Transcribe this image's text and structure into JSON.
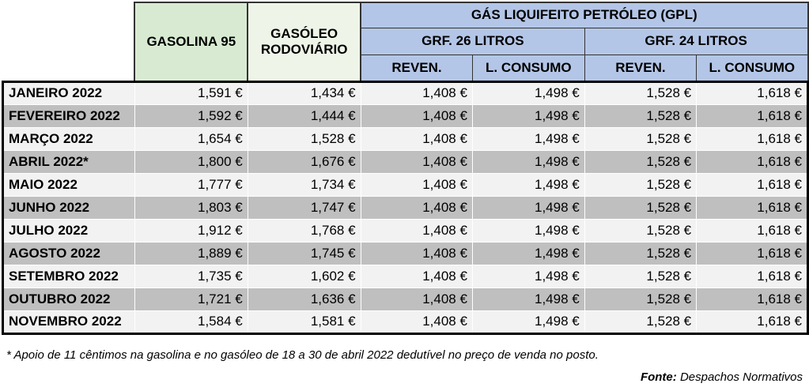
{
  "headers": {
    "gasolina": "GASOLINA 95",
    "gasoleo_line1": "GASÓLEO",
    "gasoleo_line2": "RODOVIÁRIO",
    "gpl": "GÁS LIQUIFEITO PETRÓLEO (GPL)",
    "grf26": "GRF. 26 LITROS",
    "grf24": "GRF. 24 LITROS",
    "reven_26": "REVEN.",
    "consumo_26": "L. CONSUMO",
    "reven_24": "REVEN.",
    "consumo_24": "L. CONSUMO"
  },
  "rows": [
    {
      "month": "JANEIRO 2022",
      "gasolina": "1,591 €",
      "gasoleo": "1,434 €",
      "g26_reven": "1,408 €",
      "g26_consumo": "1,498 €",
      "g24_reven": "1,528 €",
      "g24_consumo": "1,618 €"
    },
    {
      "month": "FEVEREIRO 2022",
      "gasolina": "1,592 €",
      "gasoleo": "1,444 €",
      "g26_reven": "1,408 €",
      "g26_consumo": "1,498 €",
      "g24_reven": "1,528 €",
      "g24_consumo": "1,618 €"
    },
    {
      "month": "MARÇO 2022",
      "gasolina": "1,654 €",
      "gasoleo": "1,528 €",
      "g26_reven": "1,408 €",
      "g26_consumo": "1,498 €",
      "g24_reven": "1,528 €",
      "g24_consumo": "1,618 €"
    },
    {
      "month": "ABRIL 2022*",
      "gasolina": "1,800 €",
      "gasoleo": "1,676 €",
      "g26_reven": "1,408 €",
      "g26_consumo": "1,498 €",
      "g24_reven": "1,528 €",
      "g24_consumo": "1,618 €"
    },
    {
      "month": "MAIO 2022",
      "gasolina": "1,777 €",
      "gasoleo": "1,734 €",
      "g26_reven": "1,408 €",
      "g26_consumo": "1,498 €",
      "g24_reven": "1,528 €",
      "g24_consumo": "1,618 €"
    },
    {
      "month": "JUNHO 2022",
      "gasolina": "1,803 €",
      "gasoleo": "1,747 €",
      "g26_reven": "1,408 €",
      "g26_consumo": "1,498 €",
      "g24_reven": "1,528 €",
      "g24_consumo": "1,618 €"
    },
    {
      "month": "JULHO 2022",
      "gasolina": "1,912 €",
      "gasoleo": "1,768 €",
      "g26_reven": "1,408 €",
      "g26_consumo": "1,498 €",
      "g24_reven": "1,528 €",
      "g24_consumo": "1,618 €"
    },
    {
      "month": "AGOSTO 2022",
      "gasolina": "1,889 €",
      "gasoleo": "1,745 €",
      "g26_reven": "1,408 €",
      "g26_consumo": "1,498 €",
      "g24_reven": "1,528 €",
      "g24_consumo": "1,618 €"
    },
    {
      "month": "SETEMBRO 2022",
      "gasolina": "1,735 €",
      "gasoleo": "1,602 €",
      "g26_reven": "1,408 €",
      "g26_consumo": "1,498 €",
      "g24_reven": "1,528 €",
      "g24_consumo": "1,618 €"
    },
    {
      "month": "OUTUBRO 2022",
      "gasolina": "1,721 €",
      "gasoleo": "1,636 €",
      "g26_reven": "1,408 €",
      "g26_consumo": "1,498 €",
      "g24_reven": "1,528 €",
      "g24_consumo": "1,618 €"
    },
    {
      "month": "NOVEMBRO 2022",
      "gasolina": "1,584 €",
      "gasoleo": "1,581 €",
      "g26_reven": "1,408 €",
      "g26_consumo": "1,498 €",
      "g24_reven": "1,528 €",
      "g24_consumo": "1,618 €"
    }
  ],
  "footnote": "* Apoio de 11 cêntimos na gasolina e no gasóleo de 18 a 30 de abril 2022 dedutível no preço de venda no posto.",
  "source_label": "Fonte:",
  "source_value": "Despachos Normativos"
}
